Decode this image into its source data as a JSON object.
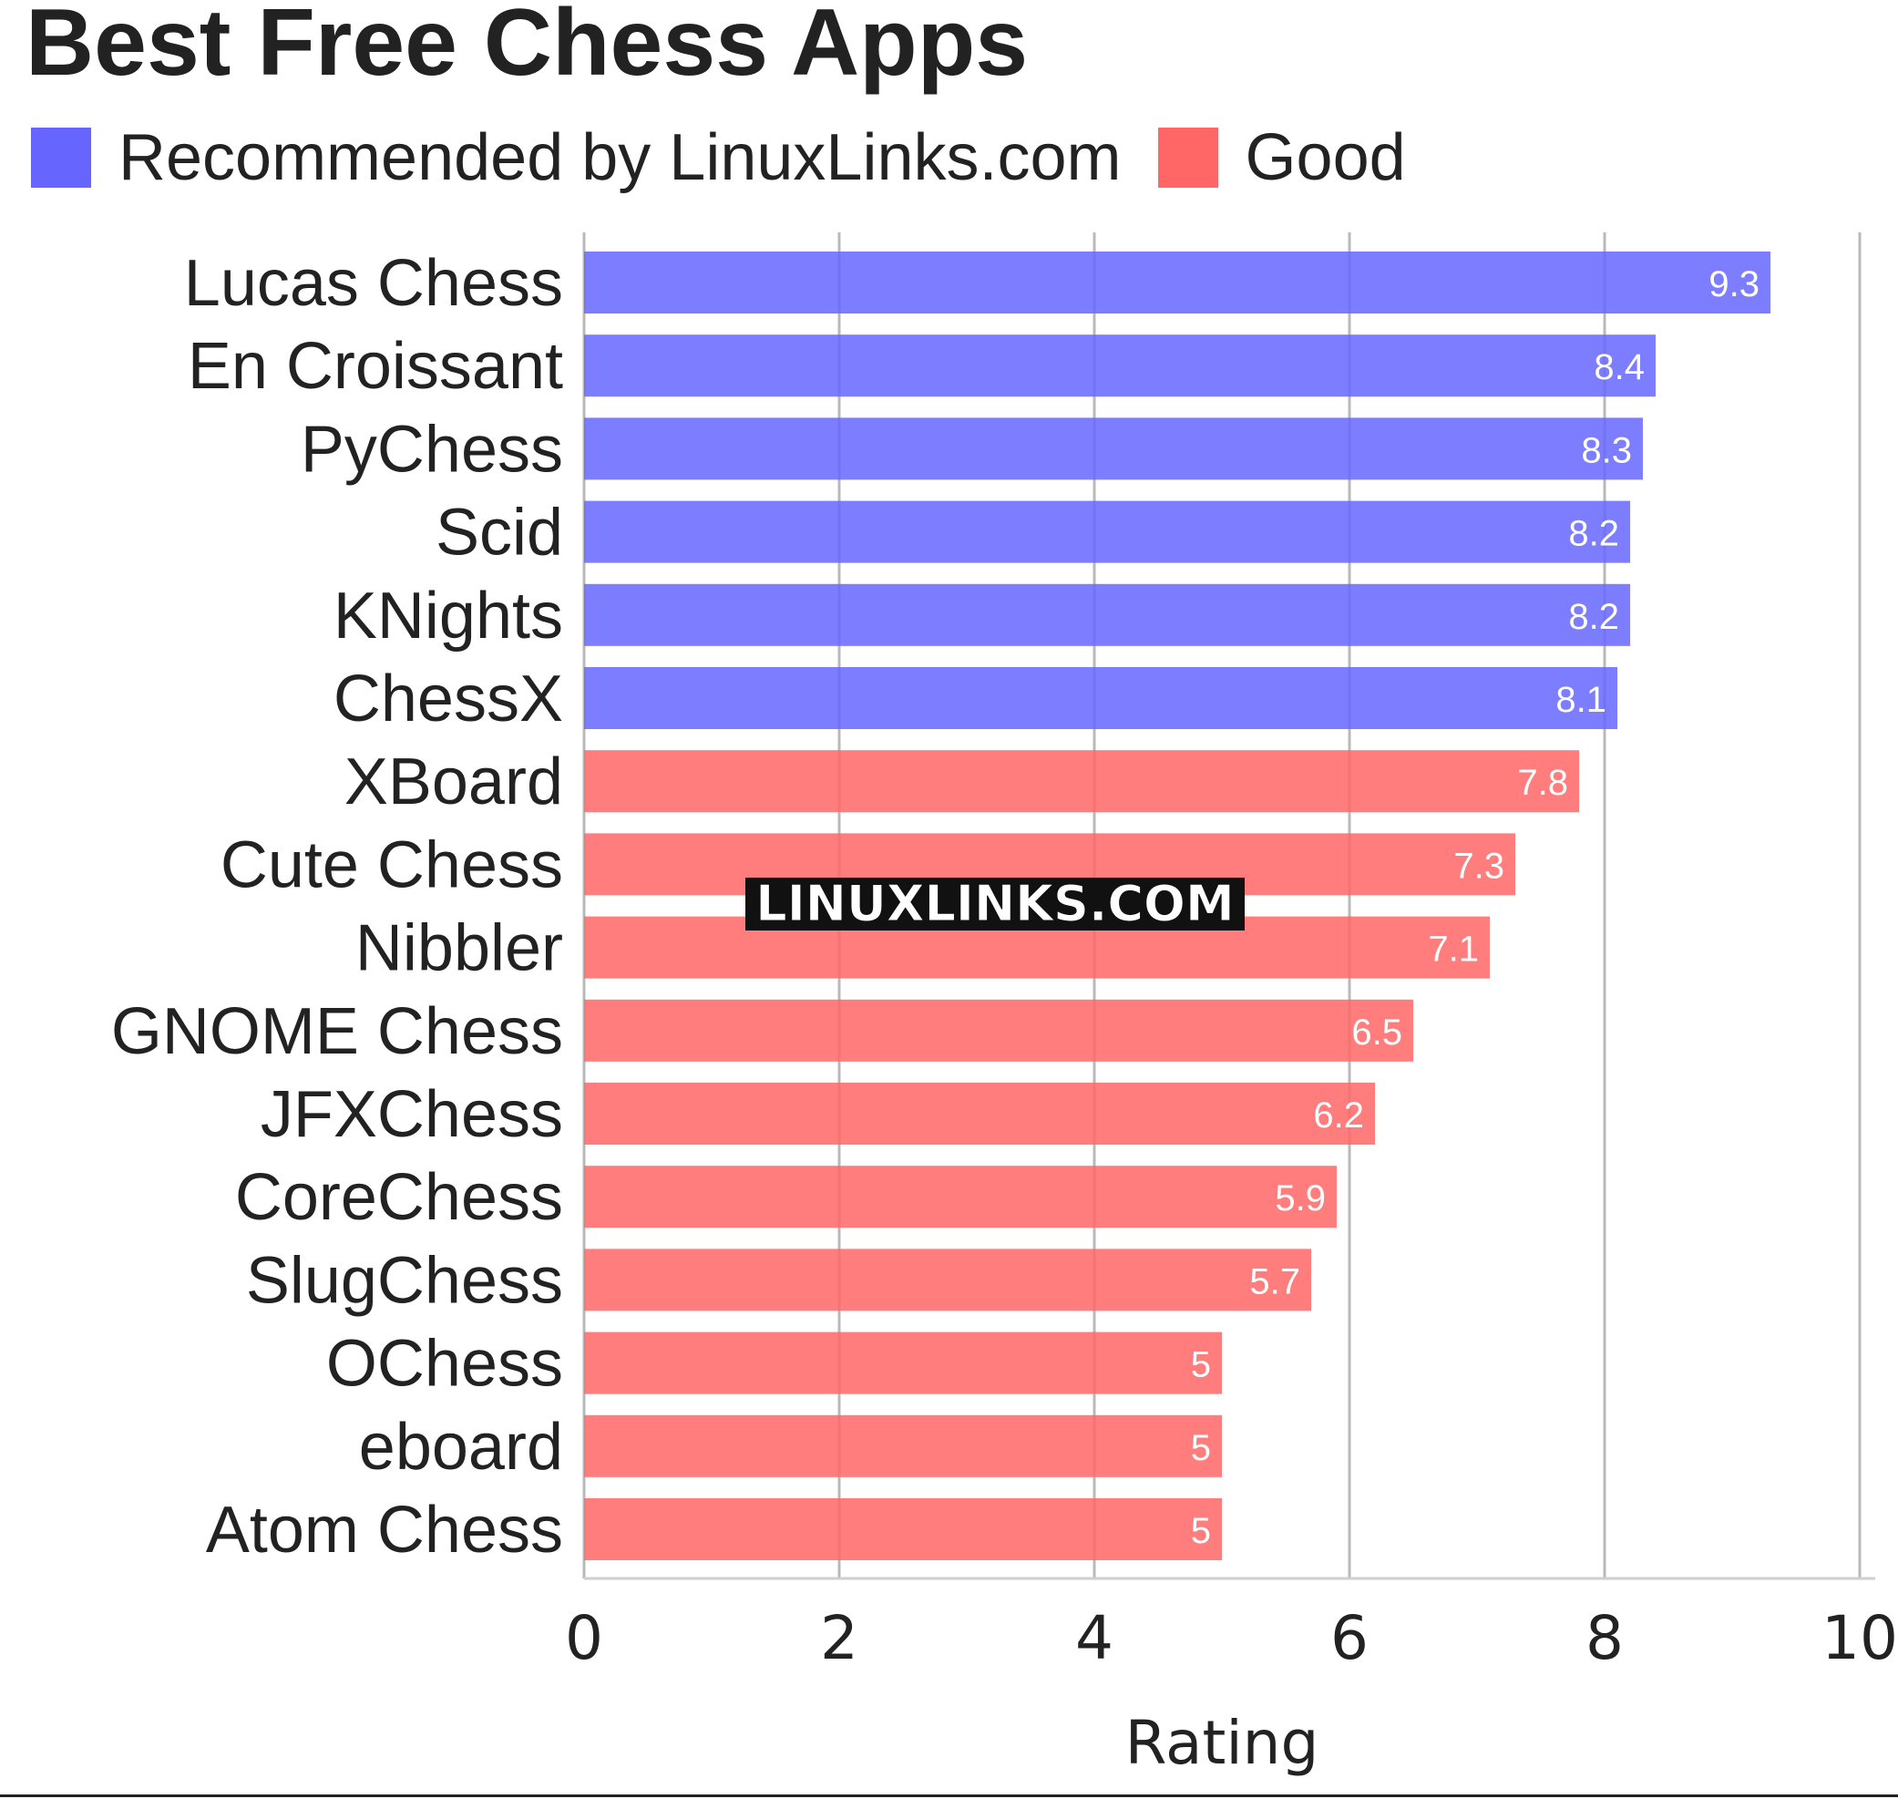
{
  "chart_data": {
    "type": "bar",
    "orientation": "horizontal",
    "title": "Best Free Chess Apps",
    "xlabel": "Rating",
    "ylabel": "",
    "xlim": [
      0,
      10
    ],
    "x_ticks": [
      "0",
      "2",
      "4",
      "6",
      "8",
      "10"
    ],
    "grid": "vertical",
    "legend_placement": "top-left",
    "legend": [
      {
        "label": "Recommended by LinuxLinks.com",
        "color": "#6666ff"
      },
      {
        "label": "Good",
        "color": "#ff6666"
      }
    ],
    "categories": [
      "Lucas Chess",
      "En Croissant",
      "PyChess",
      "Scid",
      "KNights",
      "ChessX",
      "XBoard",
      "Cute Chess",
      "Nibbler",
      "GNOME Chess",
      "JFXChess",
      "CoreChess",
      "SlugChess",
      "OChess",
      "eboard",
      "Atom Chess"
    ],
    "values": [
      9.3,
      8.4,
      8.3,
      8.2,
      8.2,
      8.1,
      7.8,
      7.3,
      7.1,
      6.5,
      6.2,
      5.9,
      5.7,
      5,
      5,
      5
    ],
    "data_labels": [
      "9.3",
      "8.4",
      "8.3",
      "8.2",
      "8.2",
      "8.1",
      "7.8",
      "7.3",
      "7.1",
      "6.5",
      "6.2",
      "5.9",
      "5.7",
      "5",
      "5",
      "5"
    ],
    "group": [
      "Recommended by LinuxLinks.com",
      "Recommended by LinuxLinks.com",
      "Recommended by LinuxLinks.com",
      "Recommended by LinuxLinks.com",
      "Recommended by LinuxLinks.com",
      "Recommended by LinuxLinks.com",
      "Good",
      "Good",
      "Good",
      "Good",
      "Good",
      "Good",
      "Good",
      "Good",
      "Good",
      "Good"
    ],
    "watermark": "LINUXLINKS.COM"
  }
}
